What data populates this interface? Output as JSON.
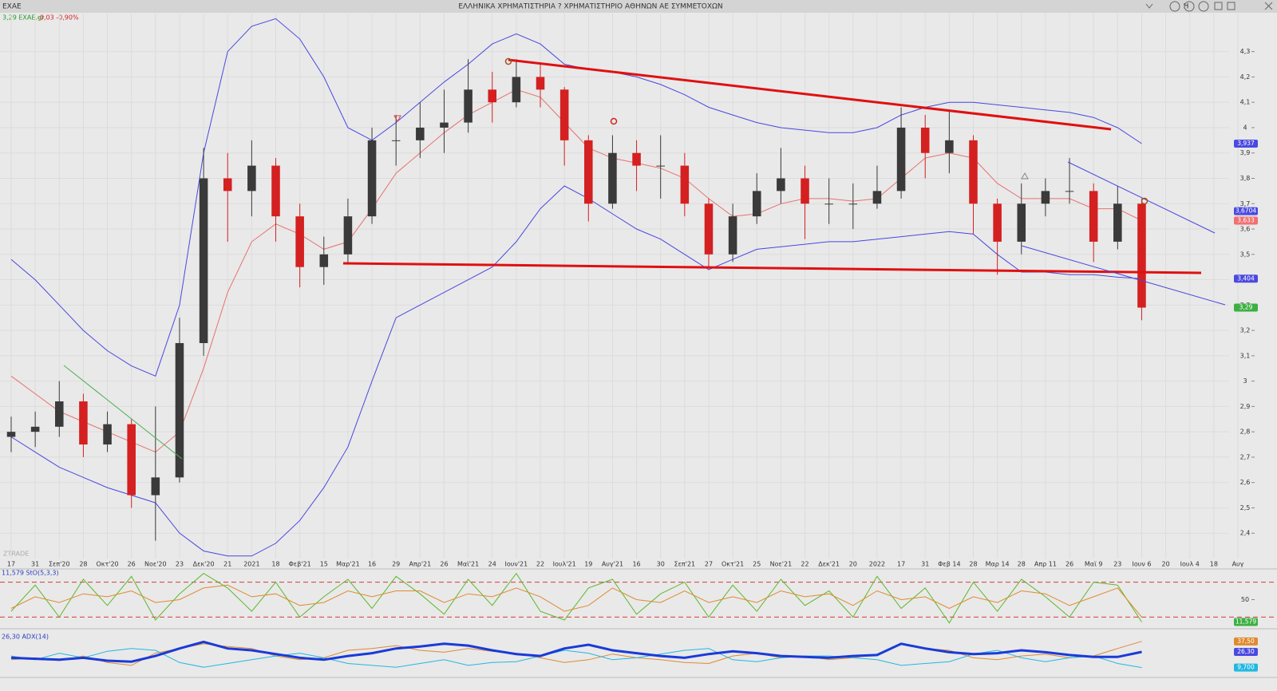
{
  "window": {
    "symbol": "EXAE",
    "title": "ΕΛΛΗΝΙΚΑ ΧΡΗΜΑΤΙΣΤΗΡΙΑ ? ΧΡΗΜΑΤΙΣΤΗΡΙΟ ΑΘΗΝΩΝ ΑΕ ΣΥΜΜΕΤΟΧΩΝ",
    "toolbar": "H",
    "quote": "3,29 EXAE.gr",
    "change": "-0,03 -0,90%",
    "watermark": "ZTRADE"
  },
  "chart_data": [
    {
      "type": "candlestick",
      "grid": true,
      "up_color": "#3a3a3a",
      "down_color": "#d42020",
      "categories": [
        "17",
        "31",
        "Σεπ'20",
        "28",
        "Οκτ'20",
        "26",
        "Νοε'20",
        "23",
        "Δεκ'20",
        "21",
        "2021",
        "18",
        "Φεβ'21",
        "15",
        "Μαρ'21",
        "16",
        "29",
        "Απρ'21",
        "26",
        "Μαϊ'21",
        "24",
        "Ιουν'21",
        "22",
        "Ιουλ'21",
        "19",
        "Αυγ'21",
        "16",
        "30",
        "Σεπ'21",
        "27",
        "Οκτ'21",
        "25",
        "Νοε'21",
        "22",
        "Δεκ'21",
        "20",
        "2022",
        "17",
        "31",
        "Φεβ 14",
        "28",
        "Μαρ 14",
        "28",
        "Απρ 11",
        "26",
        "Μαϊ 9",
        "23",
        "Ιουν 6",
        "20",
        "Ιουλ 4",
        "18",
        "Αυγ"
      ],
      "open": [
        2.78,
        2.8,
        2.82,
        2.92,
        2.75,
        2.83,
        2.55,
        2.62,
        3.15,
        3.8,
        3.75,
        3.85,
        3.65,
        3.45,
        3.5,
        3.65,
        3.95,
        3.95,
        4.0,
        4.02,
        4.15,
        4.1,
        4.2,
        4.15,
        3.95,
        3.7,
        3.9,
        3.85,
        3.85,
        3.7,
        3.5,
        3.65,
        3.75,
        3.8,
        3.7,
        3.7,
        3.7,
        3.75,
        4.0,
        3.9,
        3.95,
        3.7,
        3.55,
        3.7,
        3.75,
        3.75,
        3.55,
        3.7,
        null,
        null,
        null,
        null
      ],
      "high": [
        2.86,
        2.88,
        3.0,
        2.95,
        2.88,
        2.85,
        2.9,
        3.25,
        3.92,
        3.9,
        3.95,
        3.88,
        3.7,
        3.57,
        3.72,
        4.0,
        4.05,
        4.1,
        4.15,
        4.27,
        4.22,
        4.27,
        4.25,
        4.16,
        3.97,
        3.97,
        3.95,
        3.97,
        3.9,
        3.72,
        3.7,
        3.82,
        3.92,
        3.85,
        3.8,
        3.78,
        3.85,
        4.08,
        4.05,
        4.07,
        3.97,
        3.72,
        3.78,
        3.8,
        3.88,
        3.78,
        3.77,
        3.72,
        null,
        null,
        null,
        null
      ],
      "low": [
        2.72,
        2.74,
        2.78,
        2.7,
        2.72,
        2.5,
        2.37,
        2.6,
        3.1,
        3.55,
        3.65,
        3.55,
        3.37,
        3.38,
        3.46,
        3.62,
        3.85,
        3.88,
        3.9,
        3.98,
        4.02,
        4.08,
        4.08,
        3.85,
        3.63,
        3.68,
        3.75,
        3.72,
        3.65,
        3.45,
        3.47,
        3.62,
        3.7,
        3.56,
        3.62,
        3.6,
        3.68,
        3.72,
        3.8,
        3.82,
        3.58,
        3.42,
        3.5,
        3.65,
        3.7,
        3.47,
        3.52,
        3.24,
        null,
        null,
        null,
        null
      ],
      "close": [
        2.8,
        2.82,
        2.92,
        2.75,
        2.83,
        2.55,
        2.62,
        3.15,
        3.8,
        3.75,
        3.85,
        3.65,
        3.45,
        3.5,
        3.65,
        3.95,
        3.95,
        4.0,
        4.02,
        4.15,
        4.1,
        4.2,
        4.15,
        3.95,
        3.7,
        3.9,
        3.85,
        3.85,
        3.7,
        3.5,
        3.65,
        3.75,
        3.8,
        3.7,
        3.7,
        3.7,
        3.75,
        4.0,
        3.9,
        3.95,
        3.7,
        3.55,
        3.7,
        3.75,
        3.75,
        3.55,
        3.7,
        3.29,
        null,
        null,
        null,
        null
      ],
      "series": [
        {
          "color": "#e87070",
          "values": [
            3.02,
            2.95,
            2.88,
            2.84,
            2.8,
            2.76,
            2.72,
            2.8,
            3.05,
            3.35,
            3.55,
            3.62,
            3.58,
            3.52,
            3.55,
            3.68,
            3.82,
            3.9,
            3.98,
            4.05,
            4.1,
            4.15,
            4.12,
            4.02,
            3.92,
            3.88,
            3.86,
            3.84,
            3.8,
            3.72,
            3.65,
            3.66,
            3.7,
            3.72,
            3.72,
            3.71,
            3.72,
            3.8,
            3.88,
            3.9,
            3.88,
            3.78,
            3.72,
            3.72,
            3.72,
            3.68,
            3.68,
            3.633,
            null,
            null,
            null,
            null
          ]
        },
        {
          "color": "#4848e0",
          "values": [
            3.48,
            3.4,
            3.3,
            3.2,
            3.12,
            3.06,
            3.02,
            3.3,
            3.9,
            4.3,
            4.4,
            4.43,
            4.35,
            4.2,
            4.0,
            3.95,
            4.02,
            4.1,
            4.18,
            4.25,
            4.33,
            4.37,
            4.33,
            4.25,
            4.23,
            4.22,
            4.2,
            4.17,
            4.13,
            4.08,
            4.05,
            4.02,
            4.0,
            3.99,
            3.98,
            3.98,
            4.0,
            4.05,
            4.08,
            4.1,
            4.1,
            4.09,
            4.08,
            4.07,
            4.06,
            4.04,
            4.0,
            3.937,
            null,
            null,
            null,
            null
          ]
        },
        {
          "color": "#4848e0",
          "values": [
            2.78,
            2.72,
            2.66,
            2.62,
            2.58,
            2.55,
            2.52,
            2.4,
            2.33,
            2.31,
            2.31,
            2.36,
            2.45,
            2.58,
            2.74,
            3.0,
            3.25,
            3.3,
            3.35,
            3.4,
            3.45,
            3.55,
            3.68,
            3.77,
            3.72,
            3.66,
            3.6,
            3.56,
            3.5,
            3.44,
            3.48,
            3.52,
            3.53,
            3.54,
            3.55,
            3.55,
            3.56,
            3.57,
            3.58,
            3.59,
            3.58,
            3.5,
            3.43,
            3.43,
            3.42,
            3.42,
            3.41,
            3.404,
            null,
            null,
            null,
            null
          ]
        }
      ],
      "ylim": [
        2.3,
        4.45
      ],
      "yticks": [
        {
          "value": 4.3,
          "label": "4,3"
        },
        {
          "value": 4.2,
          "label": "4,2"
        },
        {
          "value": 4.1,
          "label": "4,1"
        },
        4,
        {
          "value": 3.9,
          "label": "3,9"
        },
        {
          "value": 3.8,
          "label": "3,8"
        },
        {
          "value": 3.7,
          "label": "3,7"
        },
        {
          "value": 3.6,
          "label": "3,6"
        },
        {
          "value": 3.5,
          "label": "3,5"
        },
        {
          "value": 3.4,
          "label": "3,4"
        },
        {
          "value": 3.3,
          "label": "3,3"
        },
        {
          "value": 3.2,
          "label": "3,2"
        },
        {
          "value": 3.1,
          "label": "3,1"
        },
        3,
        {
          "value": 2.9,
          "label": "2,9"
        },
        {
          "value": 2.8,
          "label": "2,8"
        },
        {
          "value": 2.7,
          "label": "2,7"
        },
        {
          "value": 2.6,
          "label": "2,6"
        },
        {
          "value": 2.5,
          "label": "2,5"
        },
        {
          "value": 2.4,
          "label": "2,4"
        }
      ],
      "tags": [
        {
          "value": 3.937,
          "label": "3,937",
          "color": "#4a4ae0"
        },
        {
          "value": 3.6704,
          "label": "3,6704",
          "color": "#4a4ae0"
        },
        {
          "value": 3.633,
          "label": "3,633",
          "color": "#f07070"
        },
        {
          "value": 3.404,
          "label": "3,404",
          "color": "#4a4ae0"
        },
        {
          "value": 3.29,
          "label": "3,29",
          "color": "#3cb043"
        }
      ]
    },
    {
      "type": "line",
      "title": "11,579 StO(5,3,3)",
      "ylim": [
        0,
        100
      ],
      "yticks": [
        50
      ],
      "levels": [
        20,
        80
      ],
      "series": [
        {
          "color": "#5cb82a",
          "values": [
            30,
            75,
            20,
            85,
            40,
            90,
            15,
            60,
            95,
            70,
            30,
            80,
            20,
            55,
            85,
            35,
            90,
            60,
            25,
            85,
            40,
            95,
            30,
            15,
            70,
            85,
            25,
            60,
            80,
            20,
            75,
            30,
            85,
            40,
            65,
            20,
            90,
            35,
            70,
            10,
            80,
            30,
            85,
            55,
            20,
            80,
            75,
            11.579,
            null,
            null,
            null,
            null
          ]
        },
        {
          "color": "#e08a30",
          "values": [
            35,
            55,
            45,
            60,
            55,
            65,
            45,
            50,
            70,
            75,
            55,
            60,
            40,
            45,
            65,
            55,
            65,
            65,
            45,
            60,
            55,
            70,
            55,
            30,
            40,
            70,
            50,
            45,
            65,
            45,
            55,
            45,
            65,
            55,
            60,
            40,
            65,
            50,
            55,
            35,
            55,
            45,
            65,
            60,
            40,
            55,
            70,
            20,
            null,
            null,
            null,
            null
          ]
        }
      ],
      "tags": [
        {
          "value": 11.579,
          "label": "11,579",
          "color": "#3cb043"
        }
      ]
    },
    {
      "type": "line",
      "title": "26,30 ADX(14)",
      "ylim": [
        0,
        45
      ],
      "series": [
        {
          "color": "#e08a30",
          "width": 1,
          "values": [
            18,
            20,
            17,
            22,
            15,
            12,
            25,
            30,
            35,
            32,
            30,
            22,
            18,
            20,
            28,
            30,
            33,
            28,
            26,
            30,
            27,
            25,
            20,
            15,
            18,
            24,
            20,
            18,
            15,
            14,
            22,
            25,
            20,
            22,
            18,
            20,
            24,
            35,
            30,
            28,
            20,
            18,
            22,
            24,
            20,
            22,
            30,
            37.5,
            null,
            null,
            null,
            null
          ]
        },
        {
          "color": "#22b8e0",
          "width": 1,
          "values": [
            22,
            18,
            25,
            20,
            27,
            30,
            28,
            15,
            10,
            14,
            18,
            22,
            25,
            20,
            14,
            12,
            10,
            14,
            18,
            12,
            15,
            16,
            22,
            28,
            25,
            18,
            20,
            24,
            28,
            30,
            18,
            16,
            20,
            22,
            22,
            20,
            18,
            12,
            14,
            16,
            24,
            28,
            20,
            16,
            20,
            22,
            14,
            9.7,
            null,
            null,
            null,
            null
          ]
        },
        {
          "color": "#1a3ad8",
          "width": 3,
          "values": [
            20,
            19,
            18,
            20,
            17,
            16,
            22,
            30,
            37,
            30,
            28,
            24,
            20,
            18,
            22,
            25,
            30,
            32,
            35,
            33,
            28,
            24,
            22,
            30,
            34,
            28,
            25,
            22,
            20,
            24,
            27,
            25,
            22,
            21,
            20,
            22,
            23,
            35,
            30,
            26,
            24,
            25,
            28,
            26,
            23,
            21,
            21,
            26.3,
            null,
            null,
            null,
            null
          ]
        }
      ],
      "tags": [
        {
          "value": 37.5,
          "label": "37,50",
          "color": "#e08a30"
        },
        {
          "value": 26.3,
          "label": "26,30",
          "color": "#4a4ae0"
        },
        {
          "value": 9.7,
          "label": "9,700",
          "color": "#22b8e0"
        }
      ]
    }
  ]
}
